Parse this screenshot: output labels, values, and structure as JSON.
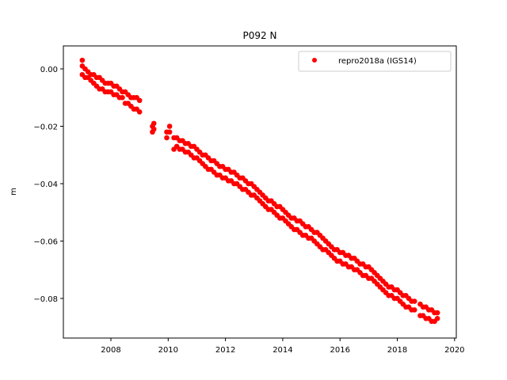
{
  "chart_data": {
    "type": "scatter",
    "title": "P092 N",
    "xlabel": "",
    "ylabel": "m",
    "xlim": [
      2006.34,
      2020.06
    ],
    "ylim": [
      -0.0938,
      0.008
    ],
    "xticks": [
      2008,
      2010,
      2012,
      2014,
      2016,
      2018,
      2020
    ],
    "xtick_labels": [
      "2008",
      "2010",
      "2012",
      "2014",
      "2016",
      "2018",
      "2020"
    ],
    "yticks": [
      0.0,
      -0.02,
      -0.04,
      -0.06,
      -0.08
    ],
    "ytick_labels": [
      "0.00",
      "−0.02",
      "−0.04",
      "−0.06",
      "−0.08"
    ],
    "grid": false,
    "legend": {
      "placement": "top-right",
      "entries": [
        "repro2018a (IGS14)"
      ]
    },
    "series": [
      {
        "name": "repro2018a (IGS14)",
        "color": "#ff0000",
        "points": [
          [
            2007.0,
            0.003
          ],
          [
            2007.0,
            0.001
          ],
          [
            2007.0,
            -0.002
          ],
          [
            2007.1,
            0.0
          ],
          [
            2007.1,
            -0.003
          ],
          [
            2007.2,
            -0.001
          ],
          [
            2007.2,
            -0.003
          ],
          [
            2007.3,
            -0.002
          ],
          [
            2007.3,
            -0.004
          ],
          [
            2007.4,
            -0.002
          ],
          [
            2007.4,
            -0.005
          ],
          [
            2007.5,
            -0.003
          ],
          [
            2007.5,
            -0.006
          ],
          [
            2007.6,
            -0.003
          ],
          [
            2007.6,
            -0.007
          ],
          [
            2007.7,
            -0.004
          ],
          [
            2007.7,
            -0.007
          ],
          [
            2007.8,
            -0.005
          ],
          [
            2007.8,
            -0.008
          ],
          [
            2007.9,
            -0.005
          ],
          [
            2007.9,
            -0.008
          ],
          [
            2008.0,
            -0.005
          ],
          [
            2008.0,
            -0.008
          ],
          [
            2008.1,
            -0.006
          ],
          [
            2008.1,
            -0.009
          ],
          [
            2008.2,
            -0.006
          ],
          [
            2008.2,
            -0.009
          ],
          [
            2008.3,
            -0.007
          ],
          [
            2008.3,
            -0.01
          ],
          [
            2008.4,
            -0.008
          ],
          [
            2008.4,
            -0.01
          ],
          [
            2008.5,
            -0.008
          ],
          [
            2008.5,
            -0.012
          ],
          [
            2008.6,
            -0.009
          ],
          [
            2008.6,
            -0.012
          ],
          [
            2008.7,
            -0.01
          ],
          [
            2008.7,
            -0.013
          ],
          [
            2008.8,
            -0.01
          ],
          [
            2008.8,
            -0.014
          ],
          [
            2008.9,
            -0.01
          ],
          [
            2008.9,
            -0.014
          ],
          [
            2009.0,
            -0.011
          ],
          [
            2009.0,
            -0.015
          ],
          [
            2009.45,
            -0.02
          ],
          [
            2009.45,
            -0.022
          ],
          [
            2009.5,
            -0.019
          ],
          [
            2009.5,
            -0.021
          ],
          [
            2009.95,
            -0.022
          ],
          [
            2009.95,
            -0.024
          ],
          [
            2010.05,
            -0.02
          ],
          [
            2010.05,
            -0.022
          ],
          [
            2010.2,
            -0.024
          ],
          [
            2010.2,
            -0.028
          ],
          [
            2010.3,
            -0.024
          ],
          [
            2010.3,
            -0.027
          ],
          [
            2010.4,
            -0.025
          ],
          [
            2010.4,
            -0.028
          ],
          [
            2010.5,
            -0.025
          ],
          [
            2010.5,
            -0.028
          ],
          [
            2010.6,
            -0.026
          ],
          [
            2010.6,
            -0.029
          ],
          [
            2010.7,
            -0.026
          ],
          [
            2010.7,
            -0.029
          ],
          [
            2010.8,
            -0.027
          ],
          [
            2010.8,
            -0.03
          ],
          [
            2010.9,
            -0.027
          ],
          [
            2010.9,
            -0.031
          ],
          [
            2011.0,
            -0.028
          ],
          [
            2011.0,
            -0.031
          ],
          [
            2011.1,
            -0.029
          ],
          [
            2011.1,
            -0.032
          ],
          [
            2011.2,
            -0.03
          ],
          [
            2011.2,
            -0.033
          ],
          [
            2011.3,
            -0.03
          ],
          [
            2011.3,
            -0.034
          ],
          [
            2011.4,
            -0.031
          ],
          [
            2011.4,
            -0.035
          ],
          [
            2011.5,
            -0.032
          ],
          [
            2011.5,
            -0.035
          ],
          [
            2011.6,
            -0.032
          ],
          [
            2011.6,
            -0.036
          ],
          [
            2011.7,
            -0.033
          ],
          [
            2011.7,
            -0.037
          ],
          [
            2011.8,
            -0.034
          ],
          [
            2011.8,
            -0.037
          ],
          [
            2011.9,
            -0.034
          ],
          [
            2011.9,
            -0.038
          ],
          [
            2012.0,
            -0.035
          ],
          [
            2012.0,
            -0.038
          ],
          [
            2012.1,
            -0.035
          ],
          [
            2012.1,
            -0.039
          ],
          [
            2012.2,
            -0.036
          ],
          [
            2012.2,
            -0.039
          ],
          [
            2012.3,
            -0.036
          ],
          [
            2012.3,
            -0.04
          ],
          [
            2012.4,
            -0.037
          ],
          [
            2012.4,
            -0.04
          ],
          [
            2012.5,
            -0.038
          ],
          [
            2012.5,
            -0.041
          ],
          [
            2012.6,
            -0.038
          ],
          [
            2012.6,
            -0.042
          ],
          [
            2012.7,
            -0.039
          ],
          [
            2012.7,
            -0.042
          ],
          [
            2012.8,
            -0.04
          ],
          [
            2012.8,
            -0.043
          ],
          [
            2012.9,
            -0.04
          ],
          [
            2012.9,
            -0.044
          ],
          [
            2013.0,
            -0.041
          ],
          [
            2013.0,
            -0.044
          ],
          [
            2013.1,
            -0.042
          ],
          [
            2013.1,
            -0.045
          ],
          [
            2013.2,
            -0.043
          ],
          [
            2013.2,
            -0.046
          ],
          [
            2013.3,
            -0.044
          ],
          [
            2013.3,
            -0.047
          ],
          [
            2013.4,
            -0.045
          ],
          [
            2013.4,
            -0.048
          ],
          [
            2013.5,
            -0.046
          ],
          [
            2013.5,
            -0.049
          ],
          [
            2013.6,
            -0.046
          ],
          [
            2013.6,
            -0.049
          ],
          [
            2013.7,
            -0.047
          ],
          [
            2013.7,
            -0.05
          ],
          [
            2013.8,
            -0.048
          ],
          [
            2013.8,
            -0.051
          ],
          [
            2013.9,
            -0.048
          ],
          [
            2013.9,
            -0.052
          ],
          [
            2014.0,
            -0.049
          ],
          [
            2014.0,
            -0.052
          ],
          [
            2014.1,
            -0.05
          ],
          [
            2014.1,
            -0.053
          ],
          [
            2014.2,
            -0.051
          ],
          [
            2014.2,
            -0.054
          ],
          [
            2014.3,
            -0.052
          ],
          [
            2014.3,
            -0.055
          ],
          [
            2014.4,
            -0.052
          ],
          [
            2014.4,
            -0.056
          ],
          [
            2014.5,
            -0.053
          ],
          [
            2014.5,
            -0.056
          ],
          [
            2014.6,
            -0.053
          ],
          [
            2014.6,
            -0.057
          ],
          [
            2014.7,
            -0.054
          ],
          [
            2014.7,
            -0.058
          ],
          [
            2014.8,
            -0.055
          ],
          [
            2014.8,
            -0.058
          ],
          [
            2014.9,
            -0.055
          ],
          [
            2014.9,
            -0.059
          ],
          [
            2015.0,
            -0.056
          ],
          [
            2015.0,
            -0.059
          ],
          [
            2015.1,
            -0.057
          ],
          [
            2015.1,
            -0.06
          ],
          [
            2015.2,
            -0.057
          ],
          [
            2015.2,
            -0.061
          ],
          [
            2015.3,
            -0.058
          ],
          [
            2015.3,
            -0.062
          ],
          [
            2015.4,
            -0.059
          ],
          [
            2015.4,
            -0.063
          ],
          [
            2015.5,
            -0.06
          ],
          [
            2015.5,
            -0.063
          ],
          [
            2015.6,
            -0.061
          ],
          [
            2015.6,
            -0.064
          ],
          [
            2015.7,
            -0.062
          ],
          [
            2015.7,
            -0.065
          ],
          [
            2015.8,
            -0.063
          ],
          [
            2015.8,
            -0.066
          ],
          [
            2015.9,
            -0.063
          ],
          [
            2015.9,
            -0.067
          ],
          [
            2016.0,
            -0.064
          ],
          [
            2016.0,
            -0.067
          ],
          [
            2016.1,
            -0.064
          ],
          [
            2016.1,
            -0.068
          ],
          [
            2016.2,
            -0.065
          ],
          [
            2016.2,
            -0.068
          ],
          [
            2016.3,
            -0.065
          ],
          [
            2016.3,
            -0.069
          ],
          [
            2016.4,
            -0.066
          ],
          [
            2016.4,
            -0.069
          ],
          [
            2016.5,
            -0.066
          ],
          [
            2016.5,
            -0.07
          ],
          [
            2016.6,
            -0.067
          ],
          [
            2016.6,
            -0.07
          ],
          [
            2016.7,
            -0.068
          ],
          [
            2016.7,
            -0.071
          ],
          [
            2016.8,
            -0.068
          ],
          [
            2016.8,
            -0.072
          ],
          [
            2016.9,
            -0.069
          ],
          [
            2016.9,
            -0.072
          ],
          [
            2017.0,
            -0.069
          ],
          [
            2017.0,
            -0.073
          ],
          [
            2017.1,
            -0.07
          ],
          [
            2017.1,
            -0.073
          ],
          [
            2017.2,
            -0.071
          ],
          [
            2017.2,
            -0.074
          ],
          [
            2017.3,
            -0.072
          ],
          [
            2017.3,
            -0.075
          ],
          [
            2017.4,
            -0.073
          ],
          [
            2017.4,
            -0.076
          ],
          [
            2017.5,
            -0.074
          ],
          [
            2017.5,
            -0.077
          ],
          [
            2017.6,
            -0.075
          ],
          [
            2017.6,
            -0.078
          ],
          [
            2017.7,
            -0.076
          ],
          [
            2017.7,
            -0.079
          ],
          [
            2017.8,
            -0.076
          ],
          [
            2017.8,
            -0.079
          ],
          [
            2017.9,
            -0.077
          ],
          [
            2017.9,
            -0.08
          ],
          [
            2018.0,
            -0.077
          ],
          [
            2018.0,
            -0.08
          ],
          [
            2018.1,
            -0.078
          ],
          [
            2018.1,
            -0.081
          ],
          [
            2018.2,
            -0.079
          ],
          [
            2018.2,
            -0.082
          ],
          [
            2018.3,
            -0.079
          ],
          [
            2018.3,
            -0.083
          ],
          [
            2018.4,
            -0.08
          ],
          [
            2018.4,
            -0.083
          ],
          [
            2018.5,
            -0.081
          ],
          [
            2018.5,
            -0.084
          ],
          [
            2018.6,
            -0.081
          ],
          [
            2018.6,
            -0.084
          ],
          [
            2018.8,
            -0.082
          ],
          [
            2018.8,
            -0.086
          ],
          [
            2018.9,
            -0.083
          ],
          [
            2018.9,
            -0.086
          ],
          [
            2019.0,
            -0.083
          ],
          [
            2019.0,
            -0.087
          ],
          [
            2019.1,
            -0.084
          ],
          [
            2019.1,
            -0.087
          ],
          [
            2019.2,
            -0.084
          ],
          [
            2019.2,
            -0.088
          ],
          [
            2019.3,
            -0.085
          ],
          [
            2019.3,
            -0.088
          ],
          [
            2019.4,
            -0.085
          ],
          [
            2019.4,
            -0.087
          ]
        ]
      }
    ]
  }
}
